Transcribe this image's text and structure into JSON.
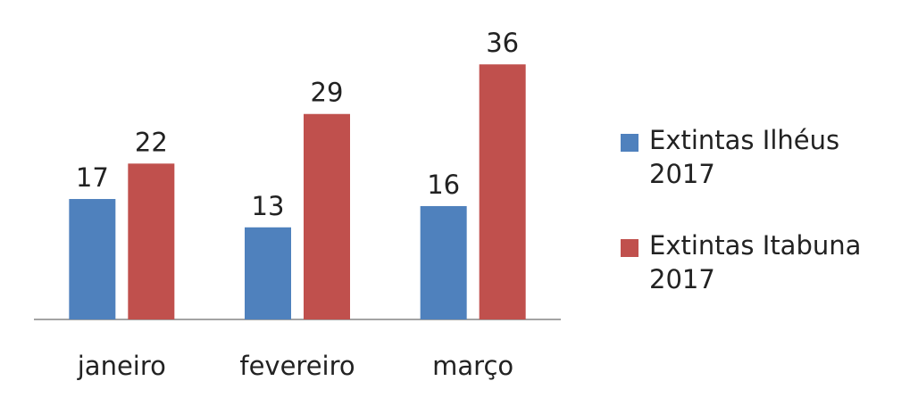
{
  "chart_data": {
    "type": "bar",
    "categories": [
      "janeiro",
      "fevereiro",
      "março"
    ],
    "series": [
      {
        "name": "Extintas Ilhéus 2017",
        "color": "#4f81bd",
        "values": [
          17,
          13,
          16
        ]
      },
      {
        "name": "Extintas Itabuna 2017",
        "color": "#c0504d",
        "values": [
          22,
          29,
          36
        ]
      }
    ],
    "legend": "right"
  }
}
